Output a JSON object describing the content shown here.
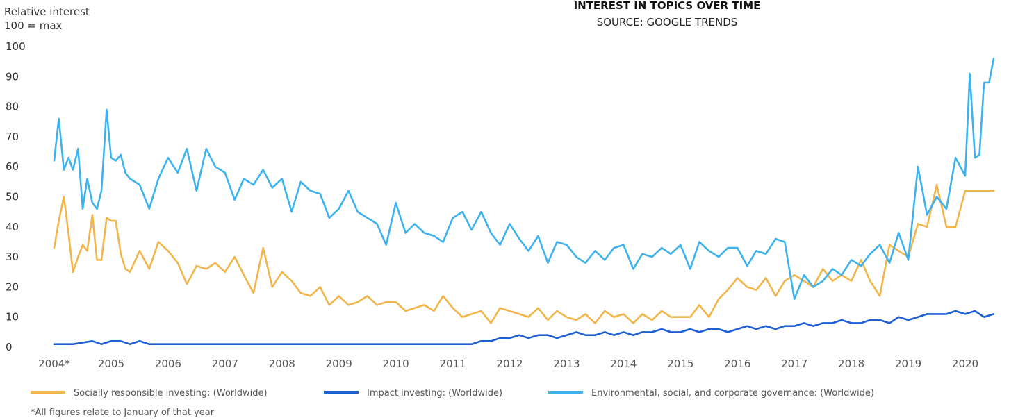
{
  "chart_data": {
    "type": "line",
    "title": "INTEREST IN TOPICS OVER TIME",
    "subtitle": "SOURCE: GOOGLE TRENDS",
    "ylabel_line1": "Relative interest",
    "ylabel_line2": "100 = max",
    "ylim": [
      0,
      100
    ],
    "xlim": [
      2004.0,
      2020.5
    ],
    "yticks": [
      "0",
      "10",
      "20",
      "30",
      "40",
      "50",
      "60",
      "70",
      "80",
      "90",
      "100"
    ],
    "xticks": [
      "2004*",
      "2005",
      "2006",
      "2007",
      "2008",
      "2009",
      "2010",
      "2011",
      "2012",
      "2013",
      "2014",
      "2015",
      "2016",
      "2017",
      "2018",
      "2019",
      "2020"
    ],
    "footnote": "*All figures relate to January of that year",
    "grid": false,
    "legend_position": "bottom",
    "series": [
      {
        "name": "Socially responsible investing: (Worldwide)",
        "color": "#f2b54a",
        "x": [
          2004.0,
          2004.08,
          2004.17,
          2004.25,
          2004.33,
          2004.42,
          2004.5,
          2004.58,
          2004.67,
          2004.75,
          2004.83,
          2004.92,
          2005.0,
          2005.08,
          2005.17,
          2005.25,
          2005.33,
          2005.5,
          2005.67,
          2005.83,
          2006.0,
          2006.17,
          2006.33,
          2006.5,
          2006.67,
          2006.83,
          2007.0,
          2007.17,
          2007.33,
          2007.5,
          2007.67,
          2007.83,
          2008.0,
          2008.17,
          2008.33,
          2008.5,
          2008.67,
          2008.83,
          2009.0,
          2009.17,
          2009.33,
          2009.5,
          2009.67,
          2009.83,
          2010.0,
          2010.17,
          2010.33,
          2010.5,
          2010.67,
          2010.83,
          2011.0,
          2011.17,
          2011.33,
          2011.5,
          2011.67,
          2011.83,
          2012.0,
          2012.17,
          2012.33,
          2012.5,
          2012.67,
          2012.83,
          2013.0,
          2013.17,
          2013.33,
          2013.5,
          2013.67,
          2013.83,
          2014.0,
          2014.17,
          2014.33,
          2014.5,
          2014.67,
          2014.83,
          2015.0,
          2015.17,
          2015.33,
          2015.5,
          2015.67,
          2015.83,
          2016.0,
          2016.17,
          2016.33,
          2016.5,
          2016.67,
          2016.83,
          2017.0,
          2017.17,
          2017.33,
          2017.5,
          2017.67,
          2017.83,
          2018.0,
          2018.17,
          2018.33,
          2018.5,
          2018.67,
          2018.83,
          2019.0,
          2019.17,
          2019.33,
          2019.5,
          2019.67,
          2019.83,
          2020.0,
          2020.17,
          2020.33,
          2020.5
        ],
        "values": [
          33,
          42,
          50,
          38,
          25,
          30,
          34,
          32,
          44,
          29,
          29,
          43,
          42,
          42,
          31,
          26,
          25,
          32,
          26,
          35,
          32,
          28,
          21,
          27,
          26,
          28,
          25,
          30,
          24,
          18,
          33,
          20,
          25,
          22,
          18,
          17,
          20,
          14,
          17,
          14,
          15,
          17,
          14,
          15,
          15,
          12,
          13,
          14,
          12,
          17,
          13,
          10,
          11,
          12,
          8,
          13,
          12,
          11,
          10,
          13,
          9,
          12,
          10,
          9,
          11,
          8,
          12,
          10,
          11,
          8,
          11,
          9,
          12,
          10,
          10,
          10,
          14,
          10,
          16,
          19,
          23,
          20,
          19,
          23,
          17,
          22,
          24,
          22,
          20,
          26,
          22,
          24,
          22,
          29,
          22,
          17,
          34,
          32,
          30,
          41,
          40,
          54,
          40,
          40,
          52,
          52,
          52,
          52
        ]
      },
      {
        "name": "Impact investing: (Worldwide)",
        "color": "#1f5fd6",
        "x": [
          2004.0,
          2004.33,
          2004.67,
          2004.83,
          2005.0,
          2005.17,
          2005.33,
          2005.5,
          2005.67,
          2006.0,
          2006.33,
          2006.67,
          2007.0,
          2007.33,
          2007.67,
          2008.0,
          2008.33,
          2008.67,
          2009.0,
          2009.33,
          2009.67,
          2010.0,
          2010.33,
          2010.67,
          2011.0,
          2011.33,
          2011.5,
          2011.67,
          2011.83,
          2012.0,
          2012.17,
          2012.33,
          2012.5,
          2012.67,
          2012.83,
          2013.0,
          2013.17,
          2013.33,
          2013.5,
          2013.67,
          2013.83,
          2014.0,
          2014.17,
          2014.33,
          2014.5,
          2014.67,
          2014.83,
          2015.0,
          2015.17,
          2015.33,
          2015.5,
          2015.67,
          2015.83,
          2016.0,
          2016.17,
          2016.33,
          2016.5,
          2016.67,
          2016.83,
          2017.0,
          2017.17,
          2017.33,
          2017.5,
          2017.67,
          2017.83,
          2018.0,
          2018.17,
          2018.33,
          2018.5,
          2018.67,
          2018.83,
          2019.0,
          2019.17,
          2019.33,
          2019.5,
          2019.67,
          2019.83,
          2020.0,
          2020.17,
          2020.33,
          2020.5
        ],
        "values": [
          1,
          1,
          2,
          1,
          2,
          2,
          1,
          2,
          1,
          1,
          1,
          1,
          1,
          1,
          1,
          1,
          1,
          1,
          1,
          1,
          1,
          1,
          1,
          1,
          1,
          1,
          2,
          2,
          3,
          3,
          4,
          3,
          4,
          4,
          3,
          4,
          5,
          4,
          4,
          5,
          4,
          5,
          4,
          5,
          5,
          6,
          5,
          5,
          6,
          5,
          6,
          6,
          5,
          6,
          7,
          6,
          7,
          6,
          7,
          7,
          8,
          7,
          8,
          8,
          9,
          8,
          8,
          9,
          9,
          8,
          10,
          9,
          10,
          11,
          11,
          11,
          12,
          11,
          12,
          10,
          11
        ]
      },
      {
        "name": "Environmental, social, and corporate governance: (Worldwide)",
        "color": "#3db2ee",
        "x": [
          2004.0,
          2004.08,
          2004.17,
          2004.25,
          2004.33,
          2004.42,
          2004.5,
          2004.58,
          2004.67,
          2004.75,
          2004.83,
          2004.92,
          2005.0,
          2005.08,
          2005.17,
          2005.25,
          2005.33,
          2005.5,
          2005.67,
          2005.83,
          2006.0,
          2006.17,
          2006.33,
          2006.5,
          2006.67,
          2006.83,
          2007.0,
          2007.17,
          2007.33,
          2007.5,
          2007.67,
          2007.83,
          2008.0,
          2008.17,
          2008.33,
          2008.5,
          2008.67,
          2008.83,
          2009.0,
          2009.17,
          2009.33,
          2009.5,
          2009.67,
          2009.83,
          2010.0,
          2010.17,
          2010.33,
          2010.5,
          2010.67,
          2010.83,
          2011.0,
          2011.17,
          2011.33,
          2011.5,
          2011.67,
          2011.83,
          2012.0,
          2012.17,
          2012.33,
          2012.5,
          2012.67,
          2012.83,
          2013.0,
          2013.17,
          2013.33,
          2013.5,
          2013.67,
          2013.83,
          2014.0,
          2014.17,
          2014.33,
          2014.5,
          2014.67,
          2014.83,
          2015.0,
          2015.17,
          2015.33,
          2015.5,
          2015.67,
          2015.83,
          2016.0,
          2016.17,
          2016.33,
          2016.5,
          2016.67,
          2016.83,
          2017.0,
          2017.17,
          2017.33,
          2017.5,
          2017.67,
          2017.83,
          2018.0,
          2018.17,
          2018.33,
          2018.5,
          2018.67,
          2018.83,
          2019.0,
          2019.17,
          2019.33,
          2019.5,
          2019.67,
          2019.83,
          2020.0,
          2020.08,
          2020.17,
          2020.25,
          2020.33,
          2020.42,
          2020.5
        ],
        "values": [
          62,
          76,
          59,
          63,
          59,
          66,
          46,
          56,
          48,
          46,
          52,
          79,
          63,
          62,
          64,
          58,
          56,
          54,
          46,
          56,
          63,
          58,
          66,
          52,
          66,
          60,
          58,
          49,
          56,
          54,
          59,
          53,
          56,
          45,
          55,
          52,
          51,
          43,
          46,
          52,
          45,
          43,
          41,
          34,
          48,
          38,
          41,
          38,
          37,
          35,
          43,
          45,
          39,
          45,
          38,
          34,
          41,
          36,
          32,
          37,
          28,
          35,
          34,
          30,
          28,
          32,
          29,
          33,
          34,
          26,
          31,
          30,
          33,
          31,
          34,
          26,
          35,
          32,
          30,
          33,
          33,
          27,
          32,
          31,
          36,
          35,
          16,
          24,
          20,
          22,
          26,
          24,
          29,
          27,
          31,
          34,
          28,
          38,
          29,
          60,
          44,
          50,
          46,
          63,
          57,
          91,
          63,
          64,
          88,
          88,
          96
        ]
      }
    ]
  }
}
